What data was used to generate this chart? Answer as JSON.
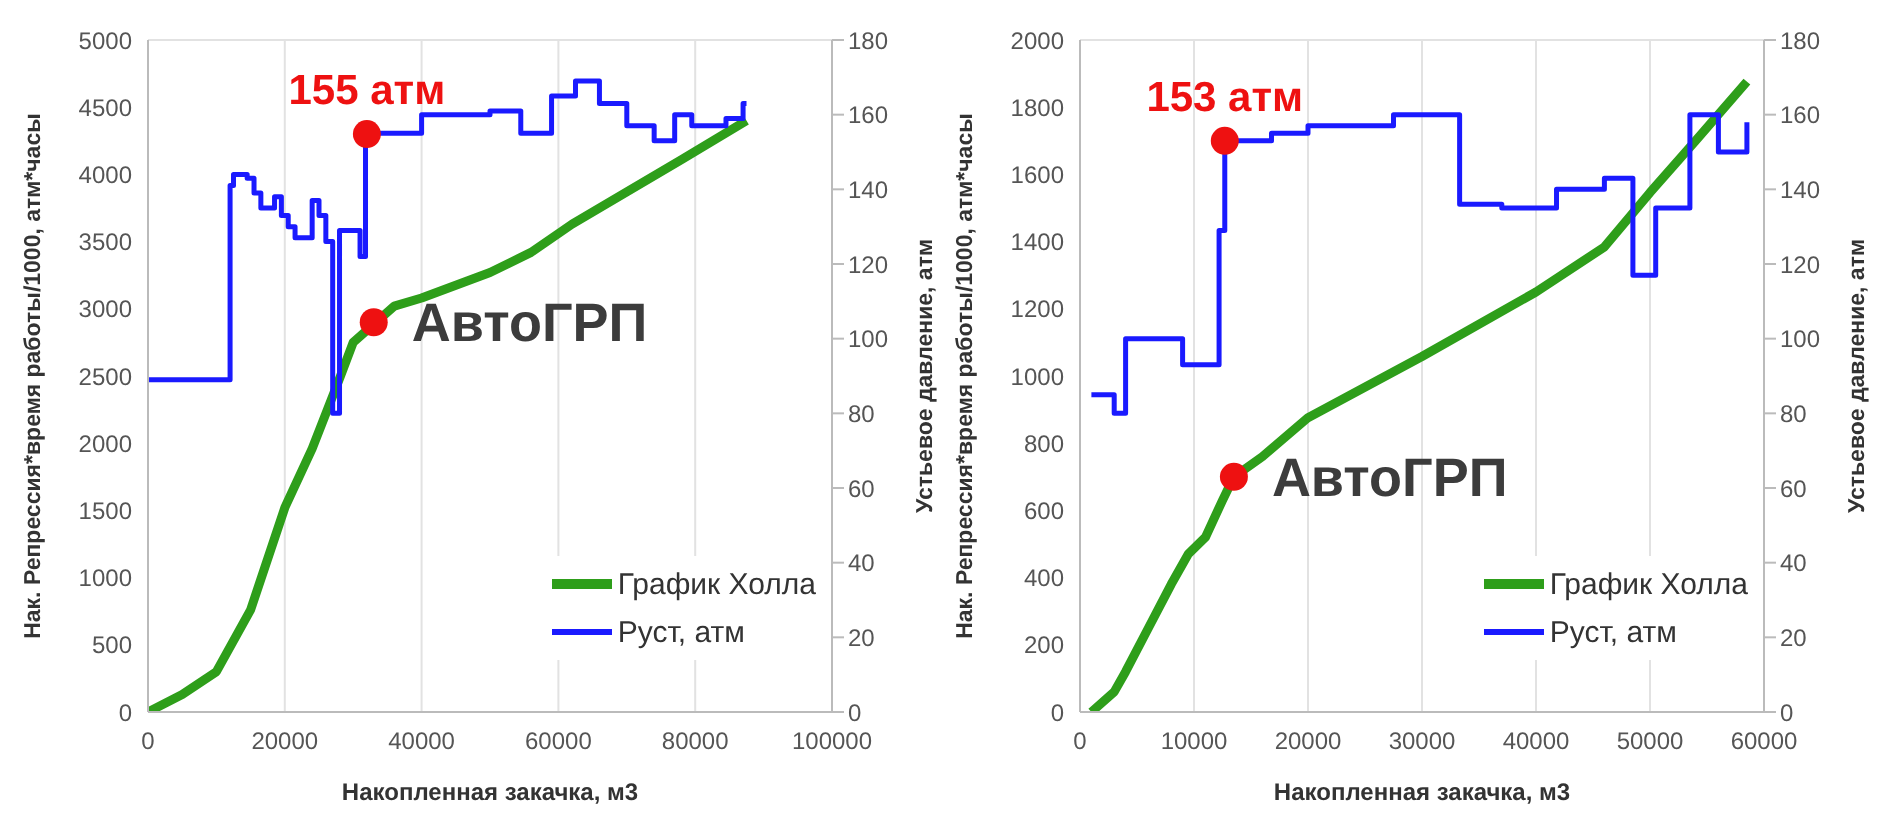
{
  "chart_data": [
    {
      "type": "line",
      "xlabel": "Накопленная закачка, м3",
      "ylabel": "Нак. Репрессия*время работы/1000, атм*часы",
      "y2label": "Устьевое давление, атм",
      "xlim": [
        0,
        100000
      ],
      "xticks": [
        0,
        20000,
        40000,
        60000,
        80000,
        100000
      ],
      "ylim": [
        0,
        5000
      ],
      "yticks": [
        0,
        500,
        1000,
        1500,
        2000,
        2500,
        3000,
        3500,
        4000,
        4500,
        5000
      ],
      "y2lim": [
        0,
        180
      ],
      "y2ticks": [
        0,
        20,
        40,
        60,
        80,
        100,
        120,
        140,
        160,
        180
      ],
      "grid": true,
      "legend": "bottom right",
      "marker": "none",
      "series": [
        {
          "name": "График Холла",
          "color": "#2e9e1a",
          "x": [
            0,
            5000,
            10000,
            15000,
            20000,
            24000,
            28000,
            30000,
            36000,
            40000,
            50000,
            56000,
            62000,
            70000,
            78000,
            87500
          ],
          "values": [
            0,
            130,
            300,
            760,
            1520,
            1960,
            2480,
            2750,
            3020,
            3080,
            3270,
            3420,
            3630,
            3870,
            4110,
            4400
          ]
        },
        {
          "name": "Руст, атм",
          "color": "#1a1aff",
          "type": "step",
          "axis": "y2",
          "x": [
            0,
            12000,
            12500,
            14500,
            15500,
            16500,
            18500,
            19500,
            20500,
            21500,
            24000,
            25000,
            26000,
            27000,
            28000,
            31000,
            31800,
            40000,
            50000,
            54500,
            59000,
            62500,
            66000,
            70000,
            74000,
            77000,
            79500,
            84500,
            87000,
            87500
          ],
          "values": [
            89,
            141,
            144,
            143,
            139,
            135,
            138,
            133,
            130,
            127,
            137,
            133,
            126,
            80,
            129,
            122,
            155,
            160,
            161,
            155,
            165,
            169,
            163,
            157,
            153,
            160,
            157,
            159,
            163,
            163
          ]
        }
      ],
      "annotations": [
        {
          "text": "155 атм",
          "x": 32000,
          "y": 4300
        },
        {
          "text": "АвтоГРП",
          "x": 33000,
          "y": 2900
        }
      ]
    },
    {
      "type": "line",
      "xlabel": "Накопленная закачка, м3",
      "ylabel": "Нак. Репрессия*время работы/1000, атм*часы",
      "y2label": "Устьевое давление, атм",
      "xlim": [
        0,
        60000
      ],
      "xticks": [
        0,
        10000,
        20000,
        30000,
        40000,
        50000,
        60000
      ],
      "ylim": [
        0,
        2000
      ],
      "yticks": [
        0,
        200,
        400,
        600,
        800,
        1000,
        1200,
        1400,
        1600,
        1800,
        2000
      ],
      "y2lim": [
        0,
        180
      ],
      "y2ticks": [
        0,
        20,
        40,
        60,
        80,
        100,
        120,
        140,
        160,
        180
      ],
      "grid": true,
      "legend": "bottom right",
      "marker": "none",
      "series": [
        {
          "name": "График Холла",
          "color": "#2e9e1a",
          "x": [
            1000,
            3000,
            4000,
            6000,
            8000,
            9500,
            11000,
            12500,
            13500,
            16000,
            20000,
            30000,
            40000,
            46000,
            50000,
            54000,
            58500
          ],
          "values": [
            0,
            60,
            120,
            250,
            380,
            470,
            520,
            630,
            700,
            760,
            876,
            1058,
            1250,
            1384,
            1546,
            1700,
            1876
          ]
        },
        {
          "name": "Руст, атм",
          "color": "#1a1aff",
          "type": "step",
          "axis": "y2",
          "x": [
            1000,
            3000,
            4000,
            9000,
            12200,
            12700,
            16800,
            20000,
            27500,
            33300,
            37000,
            41800,
            46000,
            48500,
            50500,
            53500,
            56000,
            58500,
            58500
          ],
          "values": [
            85,
            80,
            100,
            93,
            129,
            153,
            155,
            157,
            160,
            136,
            135,
            140,
            143,
            117,
            135,
            160,
            150,
            158,
            158
          ]
        }
      ],
      "annotations": [
        {
          "text": "153 атм",
          "x": 12700,
          "y": 1700
        },
        {
          "text": "АвтоГРП",
          "x": 13500,
          "y": 700
        }
      ]
    }
  ]
}
